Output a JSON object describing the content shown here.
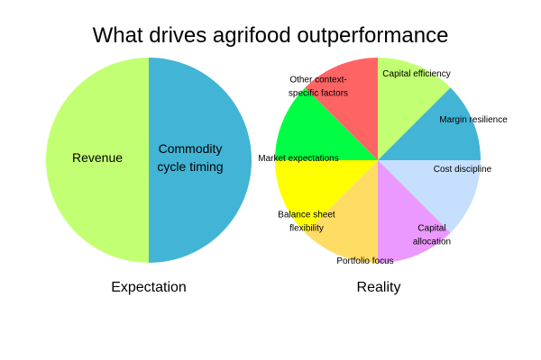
{
  "chart_data": [
    {
      "type": "pie",
      "title": "What drives agrifood outperformance",
      "caption": "Expectation",
      "slices": [
        {
          "label": "Revenue",
          "value": 50,
          "color": "#42b4d6"
        },
        {
          "label": "Commodity cycle timing",
          "value": 50,
          "color": "#c3ff73"
        }
      ]
    },
    {
      "type": "pie",
      "caption": "Reality",
      "slices": [
        {
          "label": "Capital efficiency",
          "value": 12.5,
          "color": "#c3ff73"
        },
        {
          "label": "Margin resilience",
          "value": 12.5,
          "color": "#42b4d6"
        },
        {
          "label": "Cost discipline",
          "value": 12.5,
          "color": "#c6dfff"
        },
        {
          "label": "Capital allocation",
          "value": 12.5,
          "color": "#eb99ff"
        },
        {
          "label": "Portfolio focus",
          "value": 12.5,
          "color": "#ffdc64"
        },
        {
          "label": "Balance sheet flexibility",
          "value": 12.5,
          "color": "#ffff00"
        },
        {
          "label": "Market expectations",
          "value": 12.5,
          "color": "#00ff44"
        },
        {
          "label": "Other context-specific factors",
          "value": 12.5,
          "color": "#ff6464"
        }
      ]
    }
  ]
}
